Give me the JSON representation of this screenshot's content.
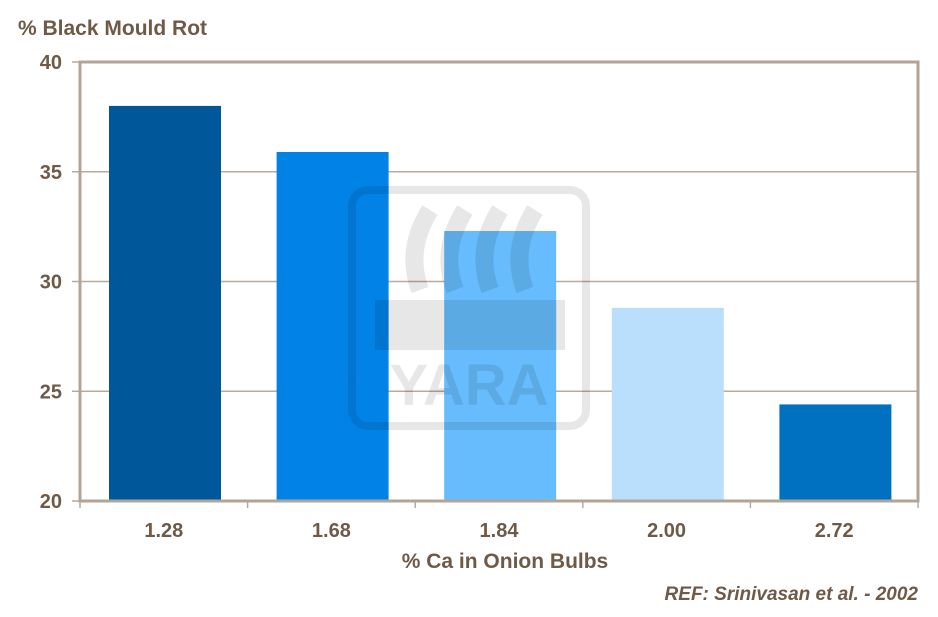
{
  "chart_data": {
    "type": "bar",
    "ylabel": "% Black Mould Rot",
    "xlabel": "% Ca in Onion Bulbs",
    "annotation": "REF: Srinivasan et al. - 2002",
    "categories": [
      "1.28",
      "1.68",
      "1.84",
      "2.00",
      "2.72"
    ],
    "values": [
      38.0,
      35.9,
      32.3,
      28.8,
      24.4
    ],
    "colors": [
      "#00579a",
      "#0082e6",
      "#66bcfc",
      "#b9dffc",
      "#0071c1"
    ],
    "ylim": [
      20,
      40
    ],
    "yticks": [
      "20",
      "25",
      "30",
      "35",
      "40"
    ],
    "grid": true,
    "watermark": "YARA"
  }
}
